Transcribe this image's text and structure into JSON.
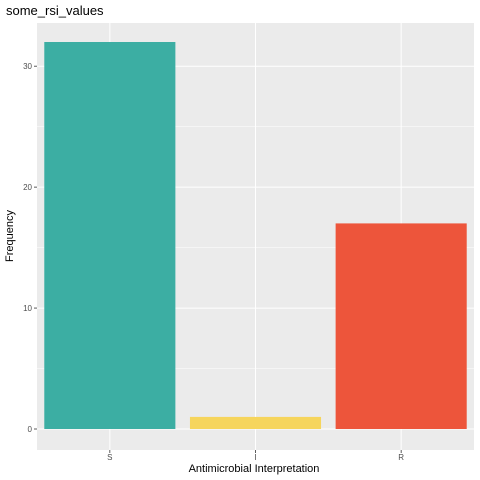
{
  "chart_data": {
    "type": "bar",
    "title": "some_rsi_values",
    "xlabel": "Antimicrobial Interpretation",
    "ylabel": "Frequency",
    "categories": [
      "S",
      "I",
      "R"
    ],
    "values": [
      32,
      1,
      17
    ],
    "colors": [
      "#3CAEA3",
      "#F6D55C",
      "#ED553B"
    ],
    "ylim": [
      0,
      33.55
    ],
    "y_ticks": [
      0,
      10,
      20,
      30
    ],
    "grid": true,
    "panel_background": "#EBEBEB",
    "grid_color": "#FFFFFF"
  }
}
